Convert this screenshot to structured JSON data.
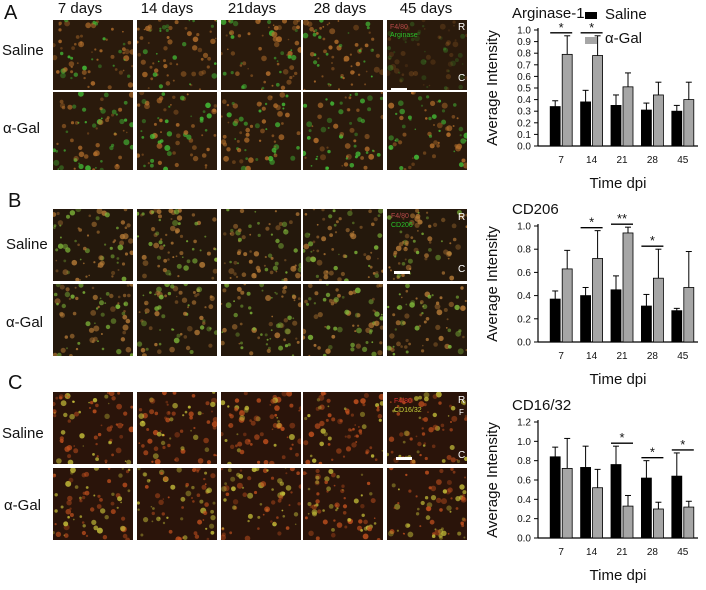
{
  "days": [
    "7 days",
    "14 days",
    "21days",
    "28 days",
    "45 days"
  ],
  "panels": [
    {
      "letter": "A",
      "rows": [
        "Saline",
        "α-Gal"
      ],
      "stain_labels": [
        "F4/80",
        "Arginase"
      ],
      "orientation": [
        "R",
        "C"
      ],
      "tint": "green"
    },
    {
      "letter": "B",
      "rows": [
        "Saline",
        "α-Gal"
      ],
      "stain_labels": [
        "F4/80",
        "CD206"
      ],
      "orientation": [
        "R",
        "C"
      ],
      "tint": "mixed"
    },
    {
      "letter": "C",
      "rows": [
        "Saline",
        "α-Gal"
      ],
      "stain_labels": [
        "F4/80",
        "CD16/32"
      ],
      "orientation": [
        "R",
        "F",
        "C"
      ],
      "tint": "red"
    }
  ],
  "legend": {
    "saline": "Saline",
    "agal": "α-Gal",
    "saline_color": "#000000",
    "agal_color": "#a6a6a6"
  },
  "chart_data": [
    {
      "type": "bar",
      "title": "Arginase-1",
      "xlabel": "Time dpi",
      "ylabel": "Average Intensity",
      "categories": [
        "7",
        "14",
        "21",
        "28",
        "45"
      ],
      "ylim": [
        0,
        1.0
      ],
      "yticks": [
        "0.0",
        "0.1",
        "0.2",
        "0.3",
        "0.4",
        "0.5",
        "0.6",
        "0.7",
        "0.8",
        "0.9",
        "1.0"
      ],
      "series": [
        {
          "name": "Saline",
          "values": [
            0.34,
            0.38,
            0.35,
            0.31,
            0.3
          ],
          "errors": [
            0.05,
            0.1,
            0.09,
            0.06,
            0.05
          ]
        },
        {
          "name": "α-Gal",
          "values": [
            0.79,
            0.78,
            0.51,
            0.44,
            0.4
          ],
          "errors": [
            0.16,
            0.17,
            0.12,
            0.11,
            0.15
          ]
        }
      ],
      "significance": [
        "*",
        "*",
        "",
        "",
        ""
      ]
    },
    {
      "type": "bar",
      "title": "CD206",
      "xlabel": "Time dpi",
      "ylabel": "Average Intensity",
      "categories": [
        "7",
        "14",
        "21",
        "28",
        "45"
      ],
      "ylim": [
        0,
        1.0
      ],
      "yticks": [
        "0.0",
        "0.2",
        "0.4",
        "0.6",
        "0.8",
        "1.0"
      ],
      "series": [
        {
          "name": "Saline",
          "values": [
            0.37,
            0.4,
            0.45,
            0.31,
            0.27
          ],
          "errors": [
            0.07,
            0.07,
            0.12,
            0.1,
            0.02
          ]
        },
        {
          "name": "α-Gal",
          "values": [
            0.63,
            0.72,
            0.94,
            0.55,
            0.47
          ],
          "errors": [
            0.16,
            0.24,
            0.05,
            0.25,
            0.31
          ]
        }
      ],
      "significance": [
        "",
        "*",
        "**",
        "*",
        ""
      ]
    },
    {
      "type": "bar",
      "title": "CD16/32",
      "xlabel": "Time dpi",
      "ylabel": "Average Intensity",
      "categories": [
        "7",
        "14",
        "21",
        "28",
        "45"
      ],
      "ylim": [
        0,
        1.2
      ],
      "yticks": [
        "0.0",
        "0.2",
        "0.4",
        "0.6",
        "0.8",
        "1.0",
        "1.2"
      ],
      "series": [
        {
          "name": "Saline",
          "values": [
            0.84,
            0.73,
            0.76,
            0.62,
            0.64
          ],
          "errors": [
            0.1,
            0.22,
            0.19,
            0.18,
            0.24
          ]
        },
        {
          "name": "α-Gal",
          "values": [
            0.72,
            0.52,
            0.33,
            0.3,
            0.32
          ],
          "errors": [
            0.31,
            0.19,
            0.11,
            0.07,
            0.06
          ]
        }
      ],
      "significance": [
        "",
        "",
        "*",
        "*",
        "*"
      ]
    }
  ]
}
